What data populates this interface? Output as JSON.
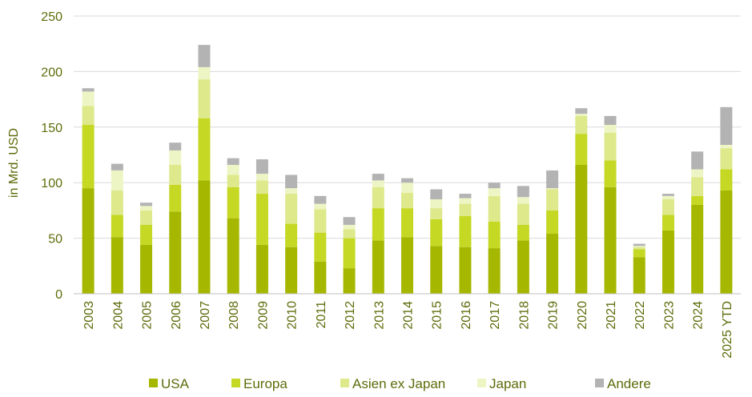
{
  "chart_data": {
    "type": "bar",
    "stacked": true,
    "title": "",
    "xlabel": "",
    "ylabel": "in Mrd. USD",
    "ylim": [
      0,
      250
    ],
    "yticks": [
      0,
      50,
      100,
      150,
      200,
      250
    ],
    "grid": true,
    "legend_position": "bottom",
    "categories": [
      "2003",
      "2004",
      "2005",
      "2006",
      "2007",
      "2008",
      "2009",
      "2010",
      "2011",
      "2012",
      "2013",
      "2014",
      "2015",
      "2016",
      "2017",
      "2018",
      "2019",
      "2020",
      "2021",
      "2022",
      "2023",
      "2024",
      "2025 YTD"
    ],
    "series": [
      {
        "name": "USA",
        "color": "#a6b700",
        "values": [
          95,
          51,
          44,
          74,
          102,
          68,
          44,
          42,
          29,
          23,
          48,
          51,
          43,
          42,
          41,
          48,
          54,
          116,
          96,
          33,
          57,
          80,
          93
        ]
      },
      {
        "name": "Europa",
        "color": "#c5d824",
        "values": [
          57,
          20,
          18,
          24,
          56,
          28,
          46,
          21,
          26,
          27,
          29,
          26,
          24,
          28,
          24,
          14,
          21,
          28,
          24,
          7,
          14,
          8,
          19
        ]
      },
      {
        "name": "Asien ex Japan",
        "color": "#dde98a",
        "values": [
          17,
          22,
          13,
          18,
          35,
          11,
          12,
          27,
          21,
          8,
          19,
          14,
          10,
          11,
          23,
          19,
          19,
          16,
          25,
          2,
          14,
          17,
          19
        ]
      },
      {
        "name": "Japan",
        "color": "#eef5c4",
        "values": [
          13,
          18,
          4,
          13,
          11,
          9,
          6,
          5,
          5,
          4,
          6,
          9,
          8,
          5,
          7,
          6,
          1,
          2,
          7,
          1,
          3,
          7,
          3
        ]
      },
      {
        "name": "Andere",
        "color": "#b3b3b3",
        "values": [
          3,
          6,
          3,
          7,
          20,
          6,
          13,
          12,
          7,
          7,
          6,
          4,
          9,
          4,
          5,
          10,
          16,
          5,
          8,
          2,
          2,
          16,
          34
        ]
      }
    ]
  }
}
